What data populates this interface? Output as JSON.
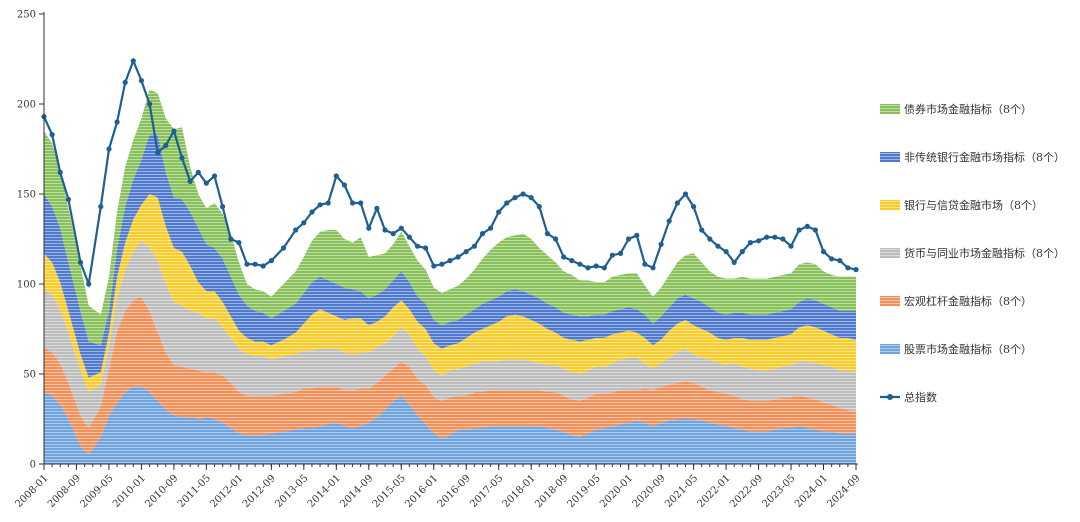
{
  "chart_data": {
    "type": "area",
    "stacked": true,
    "title": "",
    "xlabel": "",
    "ylabel": "",
    "ylim": [
      0,
      250
    ],
    "yticks": [
      "0",
      "50",
      "100",
      "150",
      "200",
      "250"
    ],
    "xticks": [
      "2008-01",
      "2008-09",
      "2009-05",
      "2010-01",
      "2010-09",
      "2011-05",
      "2012-01",
      "2012-09",
      "2013-05",
      "2014-01",
      "2014-09",
      "2015-05",
      "2016-01",
      "2016-09",
      "2017-05",
      "2018-01",
      "2018-09",
      "2019-05",
      "2020-01",
      "2020-09",
      "2021-05",
      "2022-01",
      "2022-09",
      "2023-05",
      "2024-01",
      "2024-09"
    ],
    "legend_position": "right",
    "anchors_x": [
      "2008-01",
      "2008-03",
      "2008-05",
      "2008-07",
      "2008-10",
      "2008-12",
      "2009-03",
      "2009-05",
      "2009-07",
      "2009-09",
      "2009-11",
      "2010-01",
      "2010-03",
      "2010-05",
      "2010-07",
      "2010-09",
      "2010-11",
      "2011-01",
      "2011-03",
      "2011-05",
      "2011-07",
      "2011-09",
      "2011-11",
      "2012-01",
      "2012-03",
      "2012-05",
      "2012-07",
      "2012-09",
      "2012-12",
      "2013-03",
      "2013-05",
      "2013-07",
      "2013-09",
      "2013-11",
      "2014-01",
      "2014-03",
      "2014-05",
      "2014-07",
      "2014-09",
      "2014-11",
      "2015-01",
      "2015-03",
      "2015-05",
      "2015-07",
      "2015-09",
      "2015-11",
      "2016-01",
      "2016-03",
      "2016-05",
      "2016-07",
      "2016-09",
      "2016-11",
      "2017-01",
      "2017-03",
      "2017-05",
      "2017-07",
      "2017-09",
      "2017-11",
      "2018-01",
      "2018-03",
      "2018-05",
      "2018-07",
      "2018-09",
      "2018-11",
      "2019-01",
      "2019-03",
      "2019-05",
      "2019-07",
      "2019-09",
      "2019-11",
      "2020-01",
      "2020-03",
      "2020-05",
      "2020-07",
      "2020-09",
      "2020-11",
      "2021-01",
      "2021-03",
      "2021-05",
      "2021-07",
      "2021-09",
      "2021-11",
      "2022-01",
      "2022-03",
      "2022-05",
      "2022-07",
      "2022-09",
      "2022-11",
      "2023-01",
      "2023-03",
      "2023-05",
      "2023-07",
      "2023-09",
      "2023-11",
      "2024-01",
      "2024-03",
      "2024-05",
      "2024-07",
      "2024-09"
    ],
    "series": [
      {
        "name": "股票市场金融指标（8个）",
        "color": "#6ea3de",
        "values": [
          40,
          38,
          33,
          25,
          10,
          5,
          15,
          27,
          34,
          40,
          43,
          43,
          40,
          35,
          30,
          27,
          26,
          26,
          25,
          26,
          25,
          23,
          20,
          17,
          16,
          16,
          16,
          17,
          18,
          19,
          20,
          20,
          21,
          22,
          23,
          21,
          20,
          21,
          23,
          26,
          30,
          35,
          38,
          33,
          27,
          22,
          17,
          14,
          16,
          19,
          19,
          20,
          20,
          21,
          21,
          21,
          21,
          21,
          21,
          21,
          20,
          19,
          18,
          16,
          15,
          17,
          19,
          20,
          21,
          22,
          23,
          24,
          23,
          21,
          23,
          24,
          25,
          25,
          25,
          24,
          23,
          22,
          21,
          20,
          19,
          18,
          18,
          18,
          19,
          20,
          20,
          21,
          20,
          19,
          18,
          18,
          17,
          17,
          17
        ]
      },
      {
        "name": "宏观杠杆金融指标（8个）",
        "color": "#f2905a",
        "values": [
          25,
          24,
          23,
          20,
          17,
          15,
          17,
          26,
          40,
          45,
          48,
          50,
          45,
          38,
          32,
          28,
          28,
          27,
          27,
          25,
          26,
          26,
          25,
          23,
          22,
          22,
          22,
          21,
          21,
          21,
          22,
          22,
          22,
          21,
          20,
          20,
          21,
          21,
          19,
          19,
          19,
          18,
          19,
          21,
          20,
          22,
          20,
          21,
          21,
          19,
          19,
          20,
          20,
          20,
          20,
          20,
          20,
          20,
          20,
          20,
          20,
          21,
          20,
          20,
          20,
          20,
          20,
          19,
          19,
          19,
          18,
          17,
          19,
          20,
          20,
          20,
          20,
          21,
          20,
          19,
          18,
          18,
          18,
          18,
          17,
          17,
          17,
          17,
          17,
          17,
          17,
          17,
          17,
          17,
          16,
          15,
          14,
          13,
          12
        ]
      },
      {
        "name": "货币与同业市场金融指标（8个）",
        "color": "#bdbdbd",
        "values": [
          32,
          32,
          30,
          28,
          25,
          20,
          12,
          12,
          18,
          23,
          27,
          31,
          35,
          40,
          38,
          35,
          34,
          32,
          32,
          30,
          30,
          27,
          25,
          24,
          23,
          22,
          22,
          20,
          21,
          21,
          21,
          21,
          21,
          21,
          21,
          21,
          20,
          20,
          20,
          20,
          18,
          18,
          19,
          18,
          17,
          16,
          15,
          14,
          15,
          15,
          16,
          16,
          17,
          16,
          16,
          17,
          17,
          17,
          16,
          15,
          15,
          15,
          15,
          15,
          15,
          15,
          15,
          15,
          16,
          17,
          18,
          18,
          14,
          12,
          13,
          15,
          17,
          18,
          16,
          16,
          17,
          16,
          16,
          18,
          18,
          18,
          17,
          17,
          17,
          17,
          18,
          19,
          20,
          20,
          21,
          21,
          21,
          22,
          22
        ]
      },
      {
        "name": "银行与信贷金融市场（8个）",
        "color": "#f7cd2e",
        "values": [
          20,
          18,
          15,
          12,
          9,
          8,
          7,
          8,
          12,
          15,
          18,
          20,
          30,
          35,
          32,
          30,
          30,
          25,
          17,
          15,
          15,
          14,
          12,
          10,
          9,
          8,
          8,
          8,
          9,
          12,
          15,
          20,
          22,
          20,
          18,
          18,
          20,
          19,
          15,
          14,
          15,
          16,
          15,
          14,
          15,
          15,
          15,
          15,
          14,
          14,
          16,
          17,
          18,
          20,
          22,
          24,
          25,
          24,
          23,
          22,
          20,
          18,
          17,
          18,
          18,
          17,
          16,
          16,
          16,
          15,
          15,
          14,
          14,
          13,
          13,
          15,
          16,
          16,
          16,
          16,
          15,
          14,
          14,
          14,
          16,
          16,
          17,
          17,
          17,
          17,
          17,
          19,
          20,
          20,
          19,
          18,
          18,
          18,
          18
        ]
      },
      {
        "name": "非传统银行金融市场指标（8个）",
        "color": "#4f7ad0",
        "values": [
          33,
          31,
          30,
          27,
          24,
          20,
          15,
          12,
          15,
          20,
          22,
          25,
          33,
          35,
          30,
          28,
          29,
          30,
          30,
          26,
          24,
          24,
          22,
          20,
          18,
          17,
          16,
          15,
          16,
          16,
          17,
          18,
          18,
          18,
          18,
          18,
          16,
          15,
          15,
          15,
          15,
          15,
          16,
          15,
          14,
          14,
          13,
          13,
          13,
          13,
          13,
          13,
          14,
          14,
          14,
          14,
          14,
          14,
          14,
          14,
          14,
          14,
          14,
          14,
          14,
          13,
          13,
          13,
          13,
          13,
          13,
          13,
          13,
          12,
          13,
          13,
          14,
          14,
          15,
          15,
          14,
          14,
          14,
          14,
          14,
          14,
          14,
          14,
          14,
          14,
          14,
          14,
          15,
          15,
          15,
          15,
          15,
          15,
          16
        ]
      },
      {
        "name": "债券市场金融指标（8个）",
        "color": "#88c159",
        "values": [
          35,
          35,
          32,
          30,
          25,
          20,
          17,
          19,
          21,
          22,
          22,
          23,
          25,
          23,
          30,
          38,
          40,
          25,
          19,
          20,
          25,
          25,
          24,
          18,
          12,
          12,
          12,
          12,
          15,
          18,
          20,
          23,
          25,
          28,
          30,
          27,
          26,
          30,
          23,
          22,
          20,
          20,
          22,
          20,
          20,
          19,
          18,
          18,
          18,
          19,
          20,
          22,
          25,
          28,
          30,
          30,
          30,
          32,
          31,
          28,
          27,
          25,
          23,
          22,
          20,
          20,
          18,
          18,
          19,
          19,
          19,
          20,
          16,
          15,
          16,
          18,
          20,
          22,
          25,
          22,
          20,
          20,
          20,
          19,
          20,
          20,
          20,
          20,
          20,
          20,
          20,
          21,
          20,
          20,
          18,
          18,
          19,
          19,
          19
        ]
      },
      {
        "name": "总指数",
        "color": "#1f5f92",
        "kind": "line",
        "values": [
          193,
          183,
          162,
          147,
          112,
          100,
          143,
          175,
          190,
          212,
          224,
          213,
          200,
          173,
          177,
          185,
          170,
          157,
          162,
          156,
          160,
          143,
          125,
          123,
          111,
          111,
          110,
          113,
          120,
          130,
          134,
          140,
          144,
          145,
          160,
          155,
          145,
          145,
          131,
          142,
          130,
          128,
          131,
          126,
          121,
          120,
          110,
          111,
          113,
          115,
          118,
          121,
          128,
          131,
          140,
          145,
          148,
          150,
          148,
          143,
          128,
          125,
          115,
          113,
          111,
          109,
          110,
          109,
          116,
          117,
          125,
          127,
          111,
          109,
          122,
          135,
          145,
          150,
          143,
          130,
          125,
          121,
          118,
          112,
          118,
          123,
          124,
          126,
          126,
          125,
          121,
          130,
          132,
          130,
          118,
          114,
          113,
          109,
          108
        ]
      }
    ]
  }
}
